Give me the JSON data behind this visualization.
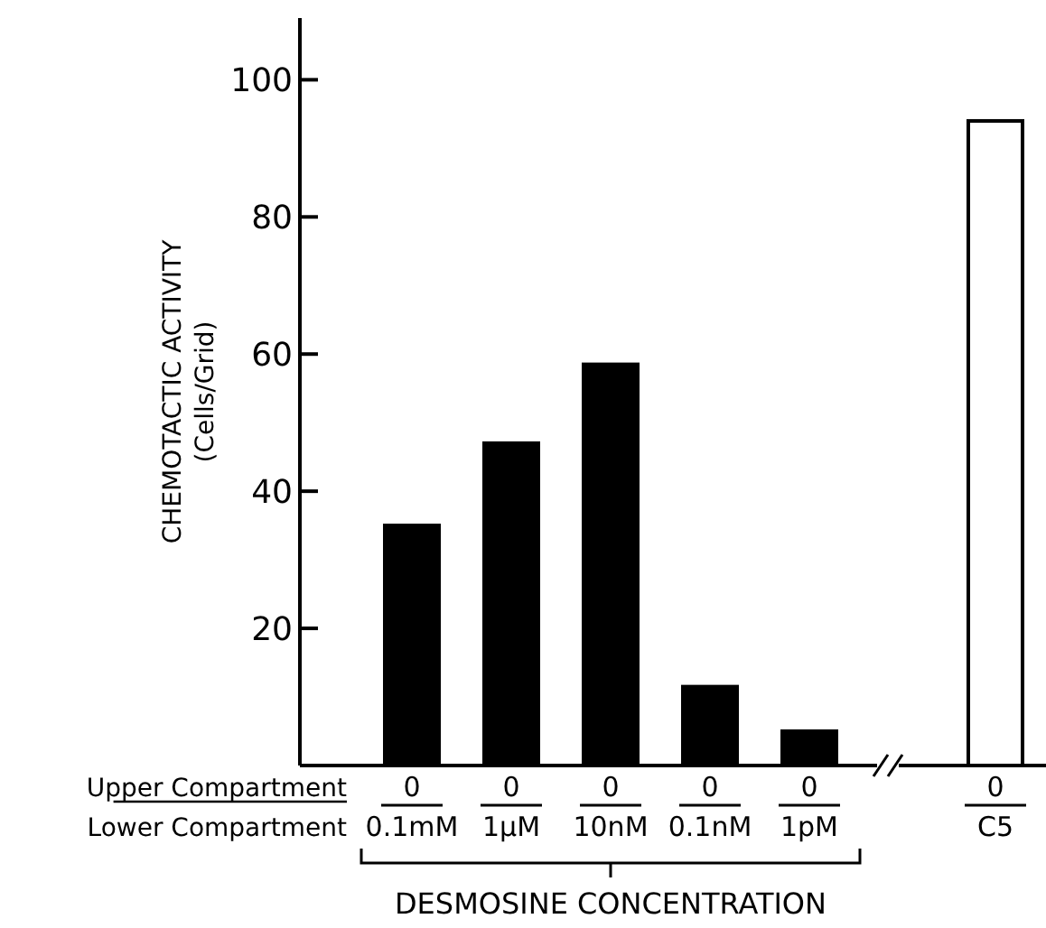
{
  "chart_data": {
    "type": "bar",
    "xlabel": "DESMOSINE CONCENTRATION",
    "ylabel": "CHEMOTACTIC ACTIVITY\n(Cells/Grid)",
    "categories": [
      "0\n0.1mM",
      "0\n1μM",
      "0\n10nM",
      "0\n0.1nM",
      "0\n1pM",
      "0\nC5"
    ],
    "values": [
      35,
      47,
      58.5,
      11.5,
      5,
      94
    ],
    "colors": [
      "#000000",
      "#000000",
      "#000000",
      "#000000",
      "#000000",
      "#ffffff"
    ],
    "ylim": [
      0,
      109
    ],
    "yticks": [
      {
        "value": 0,
        "label": null
      },
      20,
      40,
      60,
      80,
      100
    ],
    "annotations": [
      "Upper Compartment",
      "Lower Compartment"
    ]
  }
}
